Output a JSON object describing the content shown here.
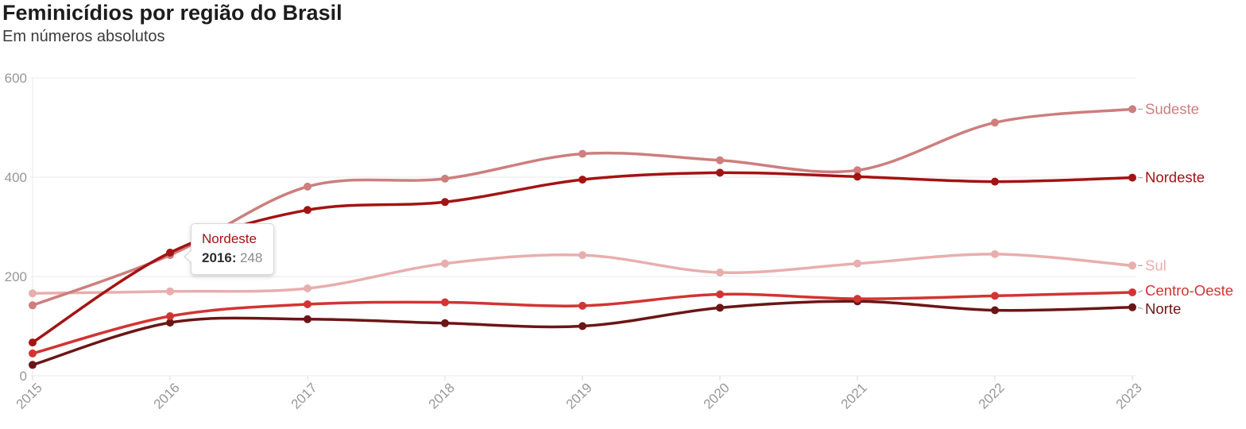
{
  "header": {
    "title": "Feminicídios por região do Brasil",
    "subtitle": "Em números absolutos"
  },
  "chart_data": {
    "type": "line",
    "title": "Feminicídios por região do Brasil",
    "subtitle": "Em números absolutos",
    "x": [
      2015,
      2016,
      2017,
      2018,
      2019,
      2020,
      2021,
      2022,
      2023
    ],
    "series": [
      {
        "name": "Sudeste",
        "color": "#cd7e7e",
        "values": [
          142,
          243,
          381,
          397,
          447,
          434,
          414,
          510,
          537
        ]
      },
      {
        "name": "Nordeste",
        "color": "#a41313",
        "values": [
          67,
          248,
          334,
          350,
          395,
          409,
          401,
          391,
          399
        ]
      },
      {
        "name": "Sul",
        "color": "#e8aeae",
        "values": [
          166,
          170,
          176,
          226,
          243,
          208,
          226,
          245,
          222
        ]
      },
      {
        "name": "Centro-Oeste",
        "color": "#d23434",
        "values": [
          45,
          120,
          144,
          148,
          141,
          164,
          155,
          161,
          168
        ]
      },
      {
        "name": "Norte",
        "color": "#6b1616",
        "values": [
          22,
          107,
          114,
          106,
          100,
          137,
          150,
          132,
          138
        ]
      }
    ],
    "ylim": [
      0,
      600
    ],
    "yticks": [
      0,
      200,
      400,
      600
    ],
    "grid": "horizontal",
    "legend_position": "line-ends"
  },
  "tooltip": {
    "region": "Nordeste",
    "year": "2016:",
    "value": "248"
  },
  "colors": {
    "grid": "#e9e9e9",
    "tick": "#d9d9d9",
    "axis_text": "#979797",
    "connector": "#aaaaaa"
  }
}
